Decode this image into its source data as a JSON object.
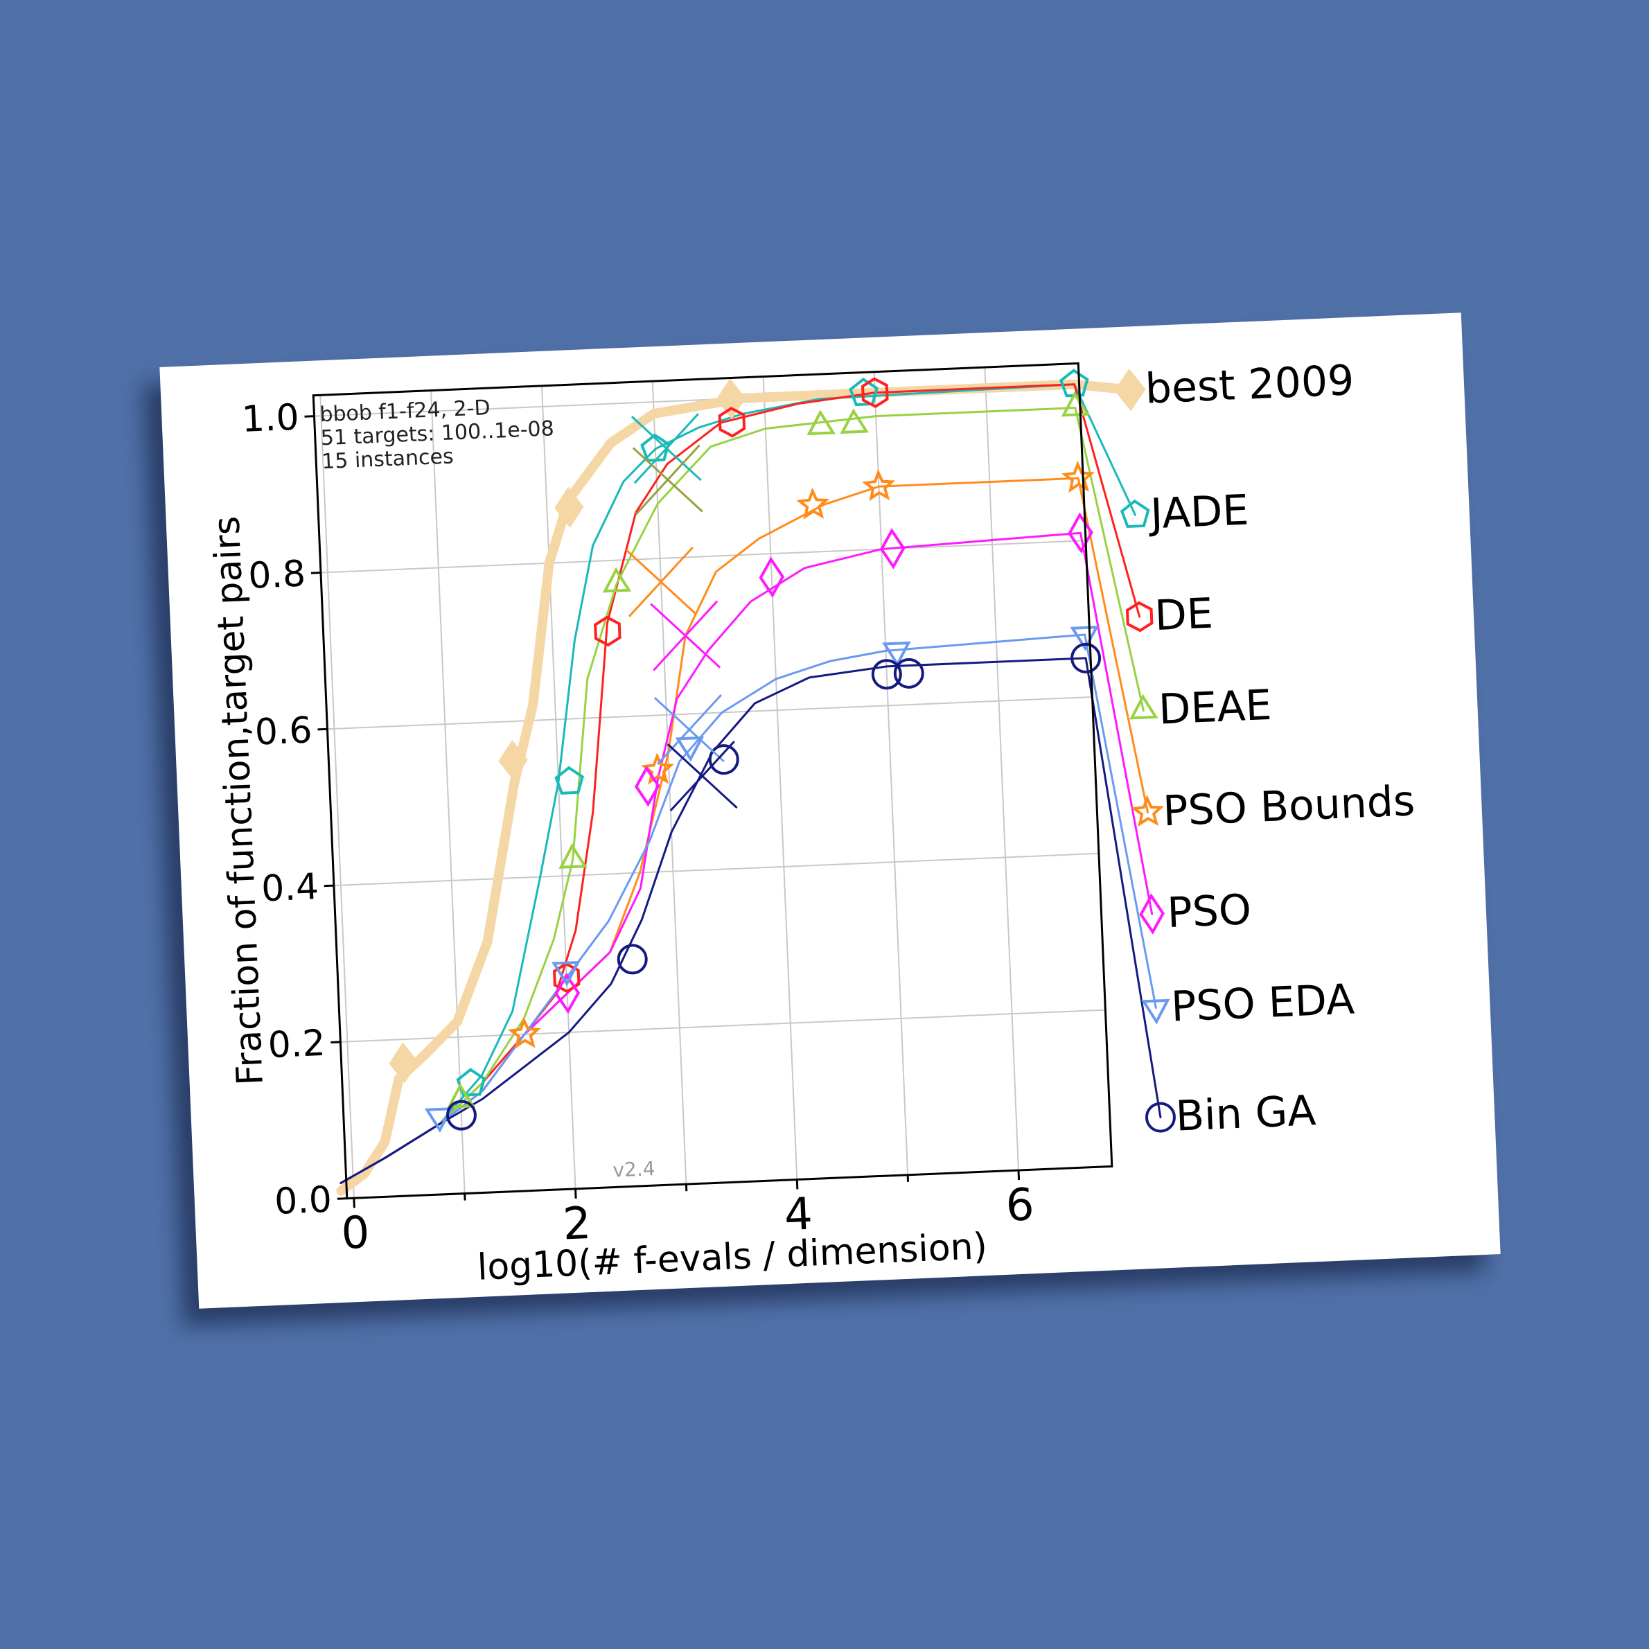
{
  "chart_data": {
    "type": "line",
    "annotation": [
      "bbob f1-f24, 2-D",
      "51 targets: 100..1e-08",
      "15 instances"
    ],
    "version": "v2.4",
    "xlabel": "log10(# f-evals / dimension)",
    "ylabel": "Fraction of function,target pairs",
    "xlim": [
      0,
      7
    ],
    "ylim": [
      0,
      1
    ],
    "xticks": [
      "0",
      "2",
      "4",
      "6"
    ],
    "yticks": [
      "0.0",
      "0.2",
      "0.4",
      "0.6",
      "0.8",
      "1.0"
    ],
    "grid": true,
    "legend_placement": "right",
    "series": [
      {
        "name": "best 2009",
        "color": "#f5d7a6",
        "marker": "diamond",
        "width": 14,
        "points": [
          [
            -0.3,
            0.01
          ],
          [
            0.1,
            0.03
          ],
          [
            0.3,
            0.07
          ],
          [
            0.45,
            0.15
          ],
          [
            0.7,
            0.18
          ],
          [
            1.0,
            0.22
          ],
          [
            1.3,
            0.32
          ],
          [
            1.6,
            0.52
          ],
          [
            1.8,
            0.62
          ],
          [
            2.0,
            0.8
          ],
          [
            2.2,
            0.88
          ],
          [
            2.6,
            0.95
          ],
          [
            3.0,
            0.985
          ],
          [
            3.8,
            1.0
          ],
          [
            4.5,
            1.0
          ],
          [
            6.8,
            1.0
          ]
        ],
        "marker_points": [
          [
            0.5,
            0.17
          ],
          [
            1.6,
            0.55
          ],
          [
            2.2,
            0.87
          ],
          [
            3.7,
            1.0
          ]
        ],
        "end": 0.99
      },
      {
        "name": "JADE",
        "color": "#1ab9b9",
        "marker": "pentagon",
        "width": 3,
        "points": [
          [
            -0.3,
            0.02
          ],
          [
            0.3,
            0.05
          ],
          [
            0.8,
            0.09
          ],
          [
            1.2,
            0.15
          ],
          [
            1.5,
            0.23
          ],
          [
            1.8,
            0.4
          ],
          [
            2.0,
            0.52
          ],
          [
            2.2,
            0.7
          ],
          [
            2.4,
            0.82
          ],
          [
            2.7,
            0.9
          ],
          [
            3.0,
            0.94
          ],
          [
            3.4,
            0.965
          ],
          [
            3.8,
            0.98
          ],
          [
            4.5,
            0.995
          ],
          [
            6.8,
            1.0
          ]
        ],
        "marker_points": [
          [
            1.1,
            0.14
          ],
          [
            2.1,
            0.52
          ],
          [
            3.0,
            0.94
          ],
          [
            4.9,
            1.0
          ],
          [
            6.8,
            1.0
          ]
        ],
        "end": 0.83
      },
      {
        "name": "DE",
        "color": "#ff2020",
        "marker": "hexagon",
        "width": 3,
        "points": [
          [
            -0.3,
            0.02
          ],
          [
            0.3,
            0.05
          ],
          [
            0.8,
            0.09
          ],
          [
            1.2,
            0.14
          ],
          [
            1.6,
            0.2
          ],
          [
            1.9,
            0.25
          ],
          [
            2.1,
            0.33
          ],
          [
            2.3,
            0.48
          ],
          [
            2.5,
            0.72
          ],
          [
            2.8,
            0.86
          ],
          [
            3.1,
            0.92
          ],
          [
            3.6,
            0.97
          ],
          [
            4.3,
            0.99
          ],
          [
            5.0,
            1.0
          ],
          [
            6.8,
            1.0
          ]
        ],
        "marker_points": [
          [
            2.0,
            0.27
          ],
          [
            2.5,
            0.71
          ],
          [
            3.7,
            0.97
          ],
          [
            5.0,
            1.0
          ]
        ],
        "end": 0.7
      },
      {
        "name": "DEAE",
        "color": "#98d242",
        "marker": "triangle-up",
        "width": 3,
        "points": [
          [
            -0.3,
            0.02
          ],
          [
            0.3,
            0.05
          ],
          [
            0.8,
            0.09
          ],
          [
            1.2,
            0.14
          ],
          [
            1.6,
            0.22
          ],
          [
            1.9,
            0.32
          ],
          [
            2.1,
            0.42
          ],
          [
            2.3,
            0.65
          ],
          [
            2.6,
            0.77
          ],
          [
            3.0,
            0.87
          ],
          [
            3.5,
            0.94
          ],
          [
            4.0,
            0.96
          ],
          [
            5.0,
            0.97
          ],
          [
            6.8,
            0.97
          ]
        ],
        "marker_points": [
          [
            1.0,
            0.12
          ],
          [
            2.1,
            0.42
          ],
          [
            2.6,
            0.77
          ],
          [
            4.5,
            0.96
          ],
          [
            4.8,
            0.96
          ],
          [
            6.8,
            0.97
          ]
        ],
        "end": 0.58
      },
      {
        "name": "PSO Bounds",
        "color": "#ff8c1a",
        "marker": "star",
        "width": 3,
        "points": [
          [
            -0.3,
            0.02
          ],
          [
            0.3,
            0.05
          ],
          [
            0.8,
            0.09
          ],
          [
            1.2,
            0.13
          ],
          [
            1.6,
            0.2
          ],
          [
            2.0,
            0.25
          ],
          [
            2.4,
            0.3
          ],
          [
            2.7,
            0.4
          ],
          [
            3.0,
            0.55
          ],
          [
            3.2,
            0.7
          ],
          [
            3.5,
            0.78
          ],
          [
            3.9,
            0.82
          ],
          [
            4.5,
            0.86
          ],
          [
            5.0,
            0.88
          ],
          [
            6.8,
            0.88
          ]
        ],
        "marker_points": [
          [
            1.6,
            0.2
          ],
          [
            2.9,
            0.53
          ],
          [
            4.4,
            0.86
          ],
          [
            5.0,
            0.88
          ],
          [
            6.8,
            0.88
          ]
        ],
        "end": 0.45
      },
      {
        "name": "PSO",
        "color": "#ff19ff",
        "marker": "diamond",
        "width": 3,
        "points": [
          [
            -0.3,
            0.02
          ],
          [
            0.3,
            0.05
          ],
          [
            0.8,
            0.09
          ],
          [
            1.2,
            0.13
          ],
          [
            1.6,
            0.2
          ],
          [
            2.0,
            0.25
          ],
          [
            2.4,
            0.3
          ],
          [
            2.7,
            0.38
          ],
          [
            2.9,
            0.52
          ],
          [
            3.1,
            0.62
          ],
          [
            3.4,
            0.68
          ],
          [
            3.8,
            0.74
          ],
          [
            4.3,
            0.78
          ],
          [
            5.0,
            0.8
          ],
          [
            6.8,
            0.81
          ]
        ],
        "marker_points": [
          [
            2.0,
            0.25
          ],
          [
            2.8,
            0.51
          ],
          [
            4.0,
            0.77
          ],
          [
            5.1,
            0.8
          ],
          [
            6.8,
            0.81
          ]
        ],
        "end": 0.32
      },
      {
        "name": "PSO EDA",
        "color": "#6a9af0",
        "marker": "triangle-down",
        "width": 3,
        "points": [
          [
            -0.3,
            0.02
          ],
          [
            0.3,
            0.05
          ],
          [
            0.8,
            0.09
          ],
          [
            1.2,
            0.13
          ],
          [
            1.6,
            0.2
          ],
          [
            2.0,
            0.27
          ],
          [
            2.4,
            0.34
          ],
          [
            2.8,
            0.44
          ],
          [
            3.1,
            0.54
          ],
          [
            3.5,
            0.6
          ],
          [
            4.0,
            0.64
          ],
          [
            4.5,
            0.66
          ],
          [
            5.0,
            0.67
          ],
          [
            6.8,
            0.68
          ]
        ],
        "marker_points": [
          [
            0.8,
            0.1
          ],
          [
            2.0,
            0.28
          ],
          [
            3.2,
            0.56
          ],
          [
            5.1,
            0.67
          ],
          [
            6.8,
            0.68
          ]
        ],
        "end": 0.2
      },
      {
        "name": "Bin GA",
        "color": "#141a80",
        "marker": "circle",
        "width": 3,
        "points": [
          [
            -0.3,
            0.02
          ],
          [
            0.3,
            0.05
          ],
          [
            0.8,
            0.09
          ],
          [
            1.2,
            0.12
          ],
          [
            1.6,
            0.16
          ],
          [
            2.0,
            0.2
          ],
          [
            2.4,
            0.26
          ],
          [
            2.7,
            0.34
          ],
          [
            3.0,
            0.45
          ],
          [
            3.4,
            0.55
          ],
          [
            3.8,
            0.61
          ],
          [
            4.3,
            0.64
          ],
          [
            5.0,
            0.65
          ],
          [
            6.8,
            0.65
          ]
        ],
        "marker_points": [
          [
            1.0,
            0.1
          ],
          [
            2.6,
            0.29
          ],
          [
            3.5,
            0.54
          ],
          [
            5.0,
            0.64
          ],
          [
            5.2,
            0.64
          ],
          [
            6.8,
            0.65
          ]
        ],
        "end": 0.06
      }
    ],
    "crosses": [
      {
        "color": "#1ab9b9",
        "x": 3.1,
        "y": 0.94
      },
      {
        "color": "#98a040",
        "x": 3.1,
        "y": 0.9
      },
      {
        "color": "#ff8c1a",
        "x": 3.0,
        "y": 0.77
      },
      {
        "color": "#ff19ff",
        "x": 3.2,
        "y": 0.7
      },
      {
        "color": "#6a9af0",
        "x": 3.2,
        "y": 0.58
      },
      {
        "color": "#141a80",
        "x": 3.3,
        "y": 0.52
      }
    ]
  }
}
